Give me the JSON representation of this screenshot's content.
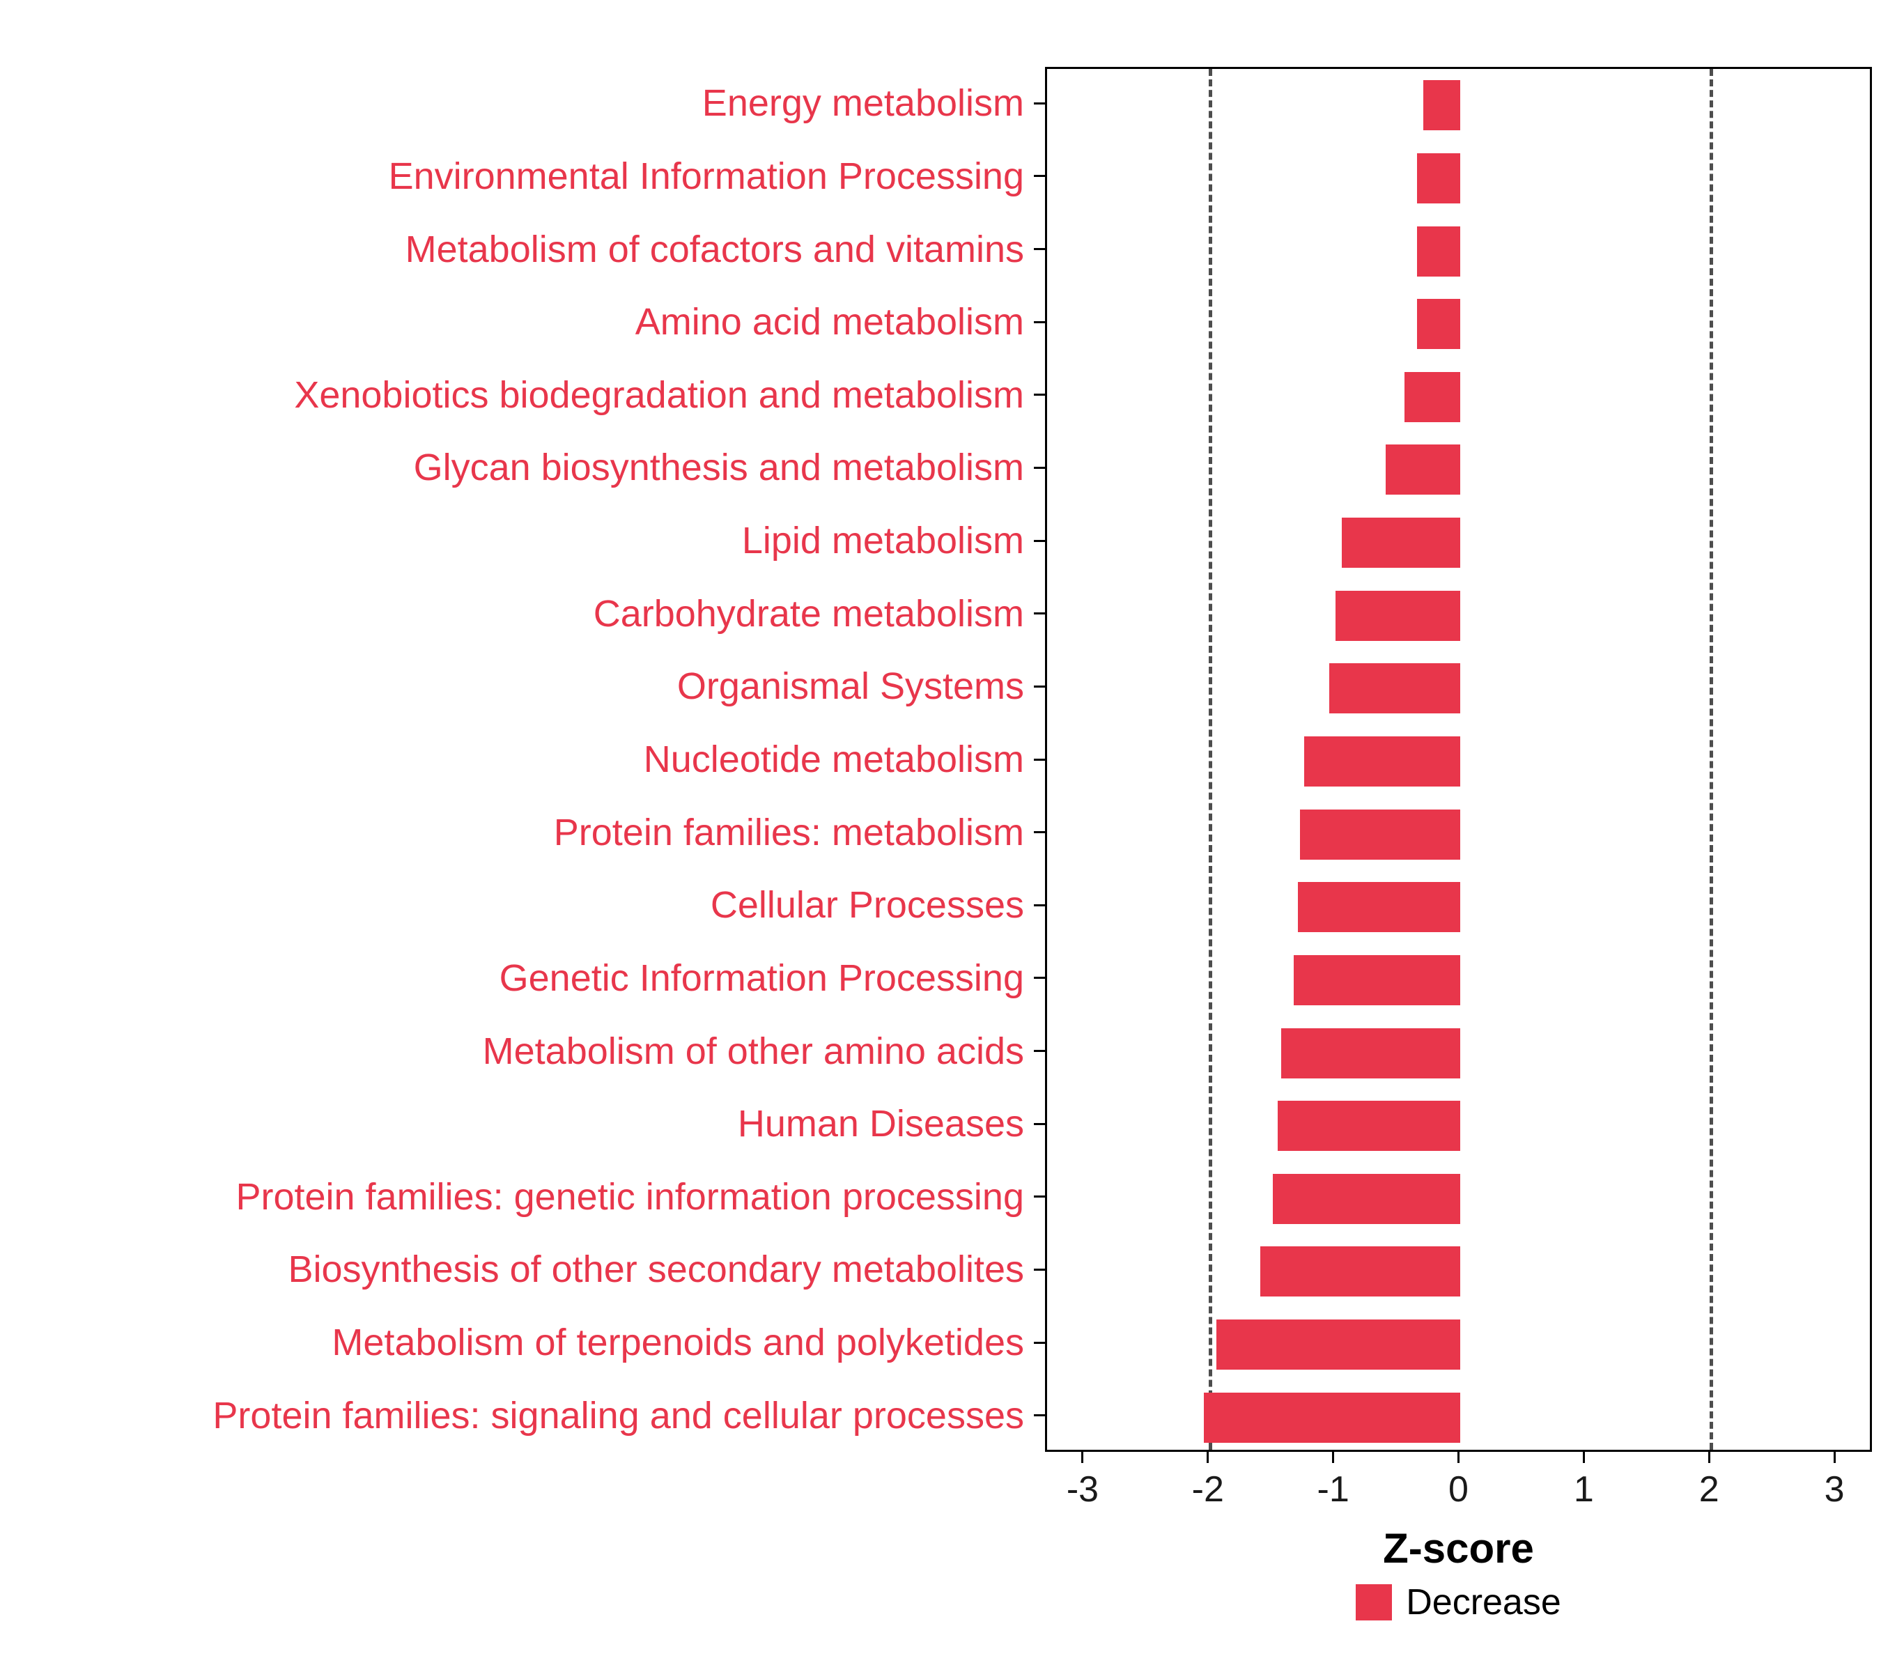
{
  "chart_data": {
    "type": "bar",
    "orientation": "horizontal",
    "title": "",
    "xlabel": "Z-score",
    "ylabel": "",
    "categories": [
      "Energy metabolism",
      "Environmental Information Processing",
      "Metabolism of cofactors and vitamins",
      "Amino acid metabolism",
      "Xenobiotics biodegradation and metabolism",
      "Glycan biosynthesis and metabolism",
      "Lipid metabolism",
      "Carbohydrate metabolism",
      "Organismal Systems",
      "Nucleotide metabolism",
      "Protein families: metabolism",
      "Cellular Processes",
      "Genetic Information Processing",
      "Metabolism of other amino acids",
      "Human Diseases",
      "Protein families: genetic information processing",
      "Biosynthesis of other secondary metabolites",
      "Metabolism of terpenoids and polyketides",
      "Protein families: signaling and cellular processes"
    ],
    "values": [
      -0.3,
      -0.35,
      -0.35,
      -0.35,
      -0.45,
      -0.6,
      -0.95,
      -1.0,
      -1.05,
      -1.25,
      -1.28,
      -1.3,
      -1.33,
      -1.43,
      -1.46,
      -1.5,
      -1.6,
      -1.95,
      -2.05
    ],
    "xlim": [
      -3.3,
      3.3
    ],
    "x_ticks": [
      "-3",
      "-2",
      "-1",
      "0",
      "1",
      "2",
      "3"
    ],
    "x_tick_values": [
      -3,
      -2,
      -1,
      0,
      1,
      2,
      3
    ],
    "threshold_lines": [
      -2,
      2
    ],
    "grid": false,
    "bar_color": "#e8364b",
    "label_color": "#e8364b",
    "threshold_color": "#4d4d4d",
    "legend": {
      "position": "bottom",
      "items": [
        {
          "label": "Decrease",
          "color": "#e8364b"
        }
      ]
    }
  }
}
